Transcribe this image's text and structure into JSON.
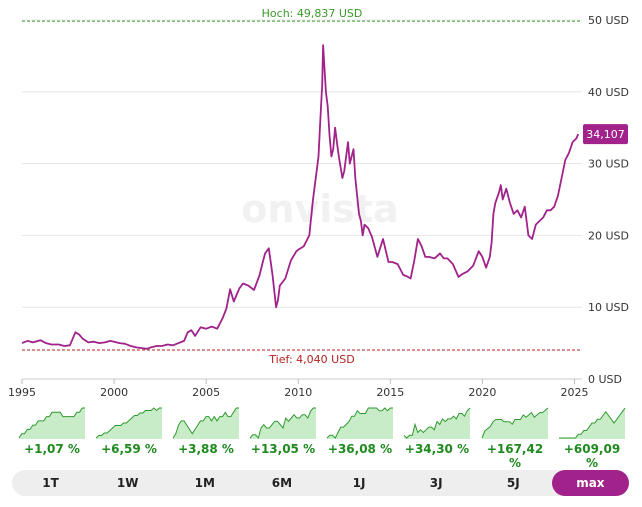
{
  "chart_data": {
    "type": "line",
    "title": "",
    "xlabel": "",
    "ylabel": "",
    "xlim": [
      1995,
      2025.3
    ],
    "ylim": [
      0,
      50
    ],
    "x_ticks": [
      "1995",
      "2000",
      "2005",
      "2010",
      "2015",
      "2020",
      "2025"
    ],
    "y_ticks": [
      "0 USD",
      "10 USD",
      "20 USD",
      "30 USD",
      "40 USD",
      "50 USD"
    ],
    "grid": true,
    "line_color": "#a0228a",
    "high": {
      "label": "Hoch: 49,837 USD",
      "value": 49.837,
      "color": "#3a9a2a"
    },
    "low": {
      "label": "Tief: 4,040 USD",
      "value": 4.04,
      "color": "#b22222"
    },
    "current": {
      "label": "34,107",
      "value": 34.107
    },
    "watermark": "onvista",
    "series": [
      {
        "x": [
          1995.0,
          1995.3,
          1995.6,
          1996.0,
          1996.3,
          1996.6,
          1997.0,
          1997.3,
          1997.6,
          1997.9,
          1998.1,
          1998.3,
          1998.6,
          1998.9,
          1999.2,
          1999.5,
          1999.8,
          2000.0,
          2000.3,
          2000.6,
          2000.9,
          2001.2,
          2001.5,
          2001.8,
          2002.0,
          2002.3,
          2002.6,
          2002.9,
          2003.2,
          2003.5,
          2003.8,
          2004.0,
          2004.2,
          2004.4,
          2004.7,
          2005.0,
          2005.3,
          2005.6,
          2005.9,
          2006.1,
          2006.3,
          2006.5,
          2006.8,
          2007.0,
          2007.3,
          2007.6,
          2007.9,
          2008.1,
          2008.2,
          2008.4,
          2008.6,
          2008.8,
          2008.9,
          2009.0,
          2009.3,
          2009.6,
          2009.9,
          2010.0,
          2010.3,
          2010.6,
          2010.8,
          2011.0,
          2011.1,
          2011.2,
          2011.3,
          2011.35,
          2011.5,
          2011.6,
          2011.7,
          2011.8,
          2011.9,
          2012.0,
          2012.1,
          2012.2,
          2012.4,
          2012.5,
          2012.7,
          2012.8,
          2013.0,
          2013.1,
          2013.3,
          2013.4,
          2013.5,
          2013.6,
          2013.8,
          2014.0,
          2014.3,
          2014.6,
          2014.9,
          2015.1,
          2015.4,
          2015.7,
          2015.9,
          2016.1,
          2016.3,
          2016.5,
          2016.7,
          2016.9,
          2017.1,
          2017.4,
          2017.7,
          2017.9,
          2018.1,
          2018.4,
          2018.7,
          2018.9,
          2019.2,
          2019.5,
          2019.8,
          2020.0,
          2020.2,
          2020.4,
          2020.5,
          2020.6,
          2020.7,
          2020.9,
          2021.0,
          2021.1,
          2021.3,
          2021.5,
          2021.7,
          2021.9,
          2022.1,
          2022.3,
          2022.5,
          2022.7,
          2022.9,
          2023.1,
          2023.3,
          2023.5,
          2023.7,
          2023.9,
          2024.1,
          2024.3,
          2024.5,
          2024.7,
          2024.9,
          2025.1,
          2025.2
        ],
        "y": [
          5.0,
          5.3,
          5.1,
          5.4,
          5.0,
          4.8,
          4.8,
          4.6,
          4.7,
          6.5,
          6.2,
          5.6,
          5.1,
          5.2,
          5.0,
          5.1,
          5.3,
          5.2,
          5.0,
          4.9,
          4.6,
          4.4,
          4.3,
          4.2,
          4.4,
          4.6,
          4.6,
          4.8,
          4.7,
          5.0,
          5.3,
          6.5,
          6.8,
          6.0,
          7.2,
          7.0,
          7.3,
          7.0,
          8.5,
          9.8,
          12.5,
          10.8,
          12.6,
          13.3,
          13.0,
          12.4,
          14.5,
          16.5,
          17.5,
          18.2,
          14.5,
          10.0,
          11.0,
          13.0,
          14.0,
          16.5,
          17.8,
          18.0,
          18.5,
          20.0,
          25.0,
          29.0,
          31.0,
          36.0,
          41.0,
          46.5,
          40.0,
          38.0,
          34.0,
          31.0,
          32.0,
          35.0,
          33.0,
          31.0,
          28.0,
          29.0,
          33.0,
          30.0,
          32.0,
          28.0,
          23.0,
          22.0,
          20.0,
          21.5,
          21.0,
          19.8,
          17.0,
          19.5,
          16.3,
          16.3,
          16.0,
          14.5,
          14.3,
          14.0,
          16.5,
          19.5,
          18.5,
          17.0,
          17.0,
          16.8,
          17.5,
          16.8,
          16.8,
          16.0,
          14.2,
          14.6,
          15.0,
          15.8,
          17.8,
          17.0,
          15.5,
          17.0,
          19.0,
          23.0,
          24.5,
          26.0,
          27.0,
          25.0,
          26.5,
          24.5,
          23.0,
          23.5,
          22.5,
          24.0,
          20.0,
          19.5,
          21.5,
          22.0,
          22.5,
          23.5,
          23.5,
          24.0,
          25.5,
          28.0,
          30.5,
          31.5,
          33.0,
          33.5,
          34.107
        ]
      }
    ]
  },
  "mini_charts": [
    {
      "period": "1T",
      "change": "+1,07 %",
      "values": [
        3,
        4,
        4,
        5,
        5,
        6,
        6,
        7,
        7,
        7,
        8,
        8,
        9,
        9,
        9,
        9,
        8,
        8,
        8,
        8,
        8,
        9,
        9,
        10,
        10
      ]
    },
    {
      "period": "1W",
      "change": "+6,59 %",
      "values": [
        2,
        3,
        3,
        4,
        4,
        5,
        6,
        7,
        7,
        7,
        8,
        8,
        9,
        10,
        11,
        11,
        12,
        12,
        13,
        13,
        13,
        14,
        13,
        14,
        14
      ]
    },
    {
      "period": "1M",
      "change": "+3,88 %",
      "values": [
        5,
        6,
        8,
        9,
        9,
        8,
        7,
        6,
        7,
        8,
        9,
        9,
        10,
        10,
        9,
        10,
        9,
        10,
        10,
        11,
        10,
        10,
        11,
        12,
        12
      ]
    },
    {
      "period": "6M",
      "change": "+13,05 %",
      "values": [
        3,
        4,
        4,
        3,
        6,
        7,
        6,
        6,
        7,
        8,
        8,
        7,
        6,
        9,
        8,
        9,
        10,
        9,
        9,
        10,
        10,
        9,
        11,
        12,
        12
      ]
    },
    {
      "period": "1J",
      "change": "+36,08 %",
      "values": [
        2,
        3,
        3,
        2,
        4,
        6,
        6,
        7,
        8,
        10,
        10,
        12,
        11,
        11,
        11,
        13,
        13,
        13,
        13,
        12,
        12,
        13,
        12,
        13,
        13
      ]
    },
    {
      "period": "3J",
      "change": "+34,30 %",
      "values": [
        4,
        3,
        4,
        4,
        8,
        5,
        6,
        5,
        6,
        7,
        7,
        6,
        9,
        8,
        10,
        9,
        10,
        10,
        11,
        10,
        12,
        12,
        11,
        13,
        14
      ]
    },
    {
      "period": "5J",
      "change": "+167,42 %",
      "values": [
        1,
        4,
        5,
        6,
        8,
        9,
        9,
        9,
        8,
        8,
        8,
        7,
        9,
        9,
        9,
        11,
        10,
        11,
        12,
        10,
        11,
        12,
        12,
        13,
        14
      ]
    },
    {
      "period": "max",
      "change": "+609,09 %",
      "values": [
        1,
        1,
        1,
        1,
        1,
        1,
        1,
        2,
        2,
        3,
        3,
        4,
        5,
        5,
        6,
        6,
        7,
        8,
        7,
        6,
        5,
        6,
        7,
        8,
        9
      ]
    }
  ],
  "tabs": [
    {
      "label": "1T",
      "active": false
    },
    {
      "label": "1W",
      "active": false
    },
    {
      "label": "1M",
      "active": false
    },
    {
      "label": "6M",
      "active": false
    },
    {
      "label": "1J",
      "active": false
    },
    {
      "label": "3J",
      "active": false
    },
    {
      "label": "5J",
      "active": false
    },
    {
      "label": "max",
      "active": true
    }
  ]
}
